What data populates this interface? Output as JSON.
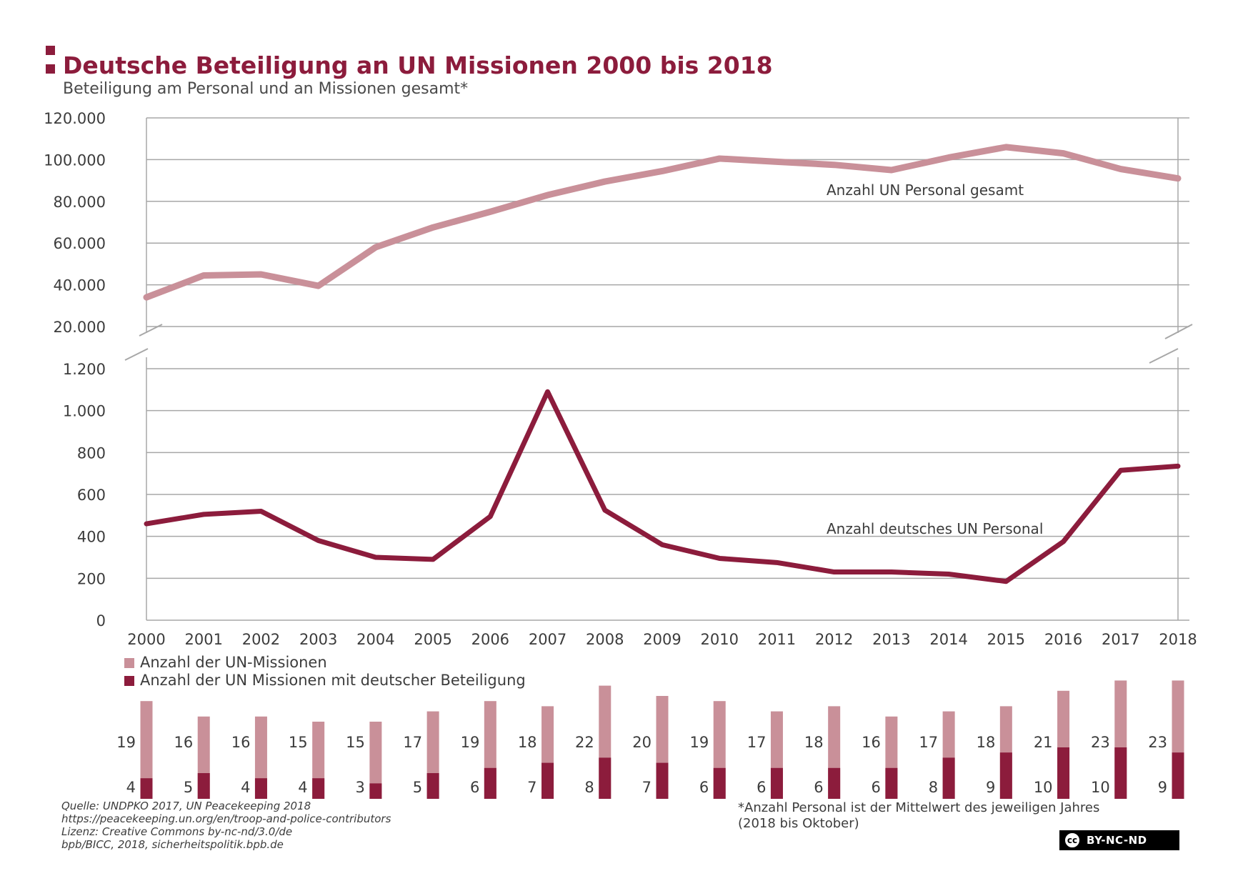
{
  "header": {
    "title": "Deutsche Beteiligung an UN Missionen 2000 bis 2018",
    "subtitle": "Beteiligung am Personal und an Missionen gesamt*"
  },
  "colors": {
    "brand": "#8c1c3c",
    "light": "#c99099",
    "grid": "#a7a7a7",
    "axis_text": "#3c3c3c"
  },
  "chart_data": [
    {
      "type": "line",
      "title": "Anzahl UN Personal gesamt",
      "years": [
        "2000",
        "2001",
        "2002",
        "2003",
        "2004",
        "2005",
        "2006",
        "2007",
        "2008",
        "2009",
        "2010",
        "2011",
        "2012",
        "2013",
        "2014",
        "2015",
        "2016",
        "2017",
        "2018"
      ],
      "values": [
        34000,
        44500,
        45000,
        39500,
        58000,
        67500,
        75000,
        83000,
        89500,
        94500,
        100500,
        99000,
        97500,
        95000,
        101000,
        106000,
        103000,
        95500,
        91000
      ],
      "ylim": [
        20000,
        120000
      ],
      "yticks": [
        20000,
        40000,
        60000,
        80000,
        100000,
        120000
      ],
      "ytick_labels": [
        "20.000",
        "40.000",
        "60.000",
        "80.000",
        "100.000",
        "120.000"
      ]
    },
    {
      "type": "line",
      "title": "Anzahl deutsches UN Personal",
      "years": [
        "2000",
        "2001",
        "2002",
        "2003",
        "2004",
        "2005",
        "2006",
        "2007",
        "2008",
        "2009",
        "2010",
        "2011",
        "2012",
        "2013",
        "2014",
        "2015",
        "2016",
        "2017",
        "2018"
      ],
      "values": [
        460,
        505,
        520,
        380,
        300,
        290,
        495,
        1090,
        525,
        360,
        295,
        275,
        230,
        230,
        220,
        185,
        375,
        715,
        735
      ],
      "ylim": [
        0,
        1200
      ],
      "yticks": [
        0,
        200,
        400,
        600,
        800,
        1000,
        1200
      ],
      "ytick_labels": [
        "0",
        "200",
        "400",
        "600",
        "800",
        "1.000",
        "1.200"
      ]
    },
    {
      "type": "bar",
      "years": [
        "2000",
        "2001",
        "2002",
        "2003",
        "2004",
        "2005",
        "2006",
        "2007",
        "2008",
        "2009",
        "2010",
        "2011",
        "2012",
        "2013",
        "2014",
        "2015",
        "2016",
        "2017",
        "2018"
      ],
      "series": [
        {
          "name": "Anzahl der UN-Missionen",
          "values": [
            19,
            16,
            16,
            15,
            15,
            17,
            19,
            18,
            22,
            20,
            19,
            17,
            18,
            16,
            17,
            18,
            21,
            23,
            23
          ]
        },
        {
          "name": "Anzahl der UN Missionen mit deutscher Beteiligung",
          "values": [
            4,
            5,
            4,
            4,
            3,
            5,
            6,
            7,
            8,
            7,
            6,
            6,
            6,
            6,
            8,
            9,
            10,
            10,
            9
          ]
        }
      ]
    }
  ],
  "legend": {
    "total_missions": "Anzahl der UN-Missionen",
    "german_missions": "Anzahl der UN Missionen mit deutscher Beteiligung"
  },
  "source": {
    "line1": "Quelle: UNDPKO 2017, UN Peacekeeping 2018",
    "line2": "https://peacekeeping.un.org/en/troop-and-police-contributors",
    "line3": "Lizenz: Creative Commons by-nc-nd/3.0/de",
    "line4": "bpb/BICC, 2018, sicherheitspolitik.bpb.de"
  },
  "footnote": {
    "line1": "*Anzahl Personal ist der Mittelwert des jeweiligen Jahres",
    "line2": "(2018 bis Oktober)"
  },
  "license_badge": {
    "cc": "cc",
    "text": "BY-NC-ND"
  }
}
